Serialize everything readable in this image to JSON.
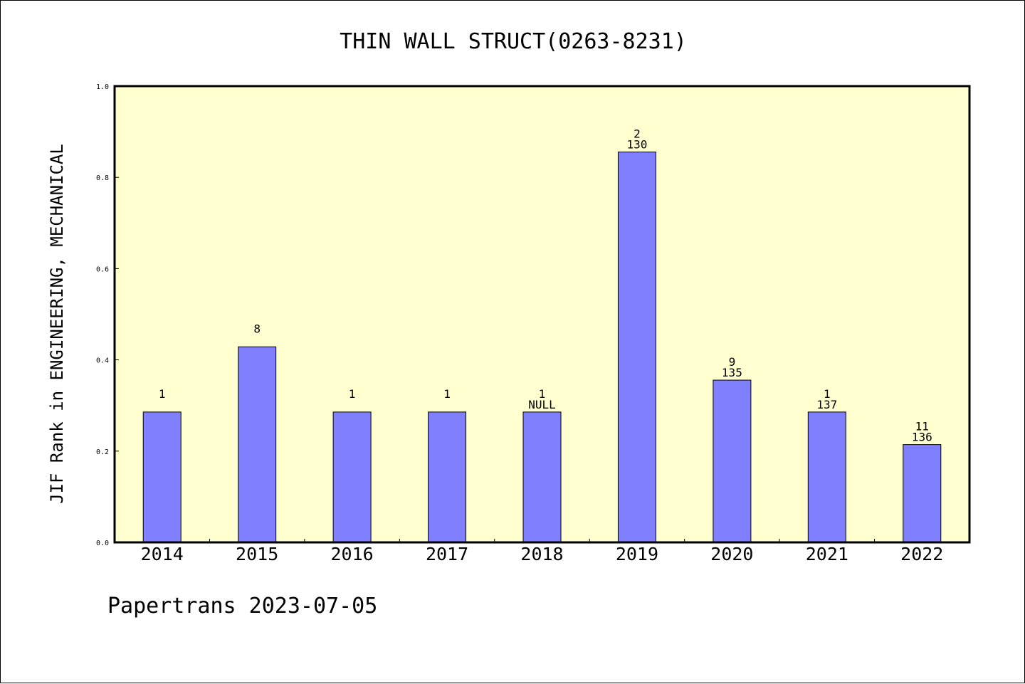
{
  "chart_data": {
    "type": "bar",
    "title": "THIN WALL STRUCT(0263-8231)",
    "ylabel": "JIF Rank in ENGINEERING, MECHANICAL",
    "xlabel": "",
    "categories": [
      "2014",
      "2015",
      "2016",
      "2017",
      "2018",
      "2019",
      "2020",
      "2021",
      "2022"
    ],
    "values": [
      0.2857,
      0.4286,
      0.2857,
      0.2857,
      0.2857,
      0.8556,
      0.3556,
      0.2857,
      0.2143
    ],
    "labels_top": [
      "1",
      "8",
      "1",
      "1",
      "1",
      "2",
      "9",
      "1",
      "11"
    ],
    "labels_bottom": [
      "",
      "",
      "",
      "",
      "NULL",
      "130",
      "135",
      "137",
      "136"
    ],
    "ylim": [
      0,
      1
    ],
    "yticks": [
      0.0,
      0.2,
      0.4,
      0.6,
      0.8,
      1.0
    ],
    "ytick_labels": [
      "0.0",
      "0.2",
      "0.4",
      "0.6",
      "0.8",
      "1.0"
    ],
    "grid": false,
    "legend": "none",
    "colors": {
      "bar": "#8080ff",
      "plot_background": "#ffffd0",
      "axis": "#000000"
    }
  },
  "footer": {
    "text": "Papertrans 2023-07-05"
  }
}
